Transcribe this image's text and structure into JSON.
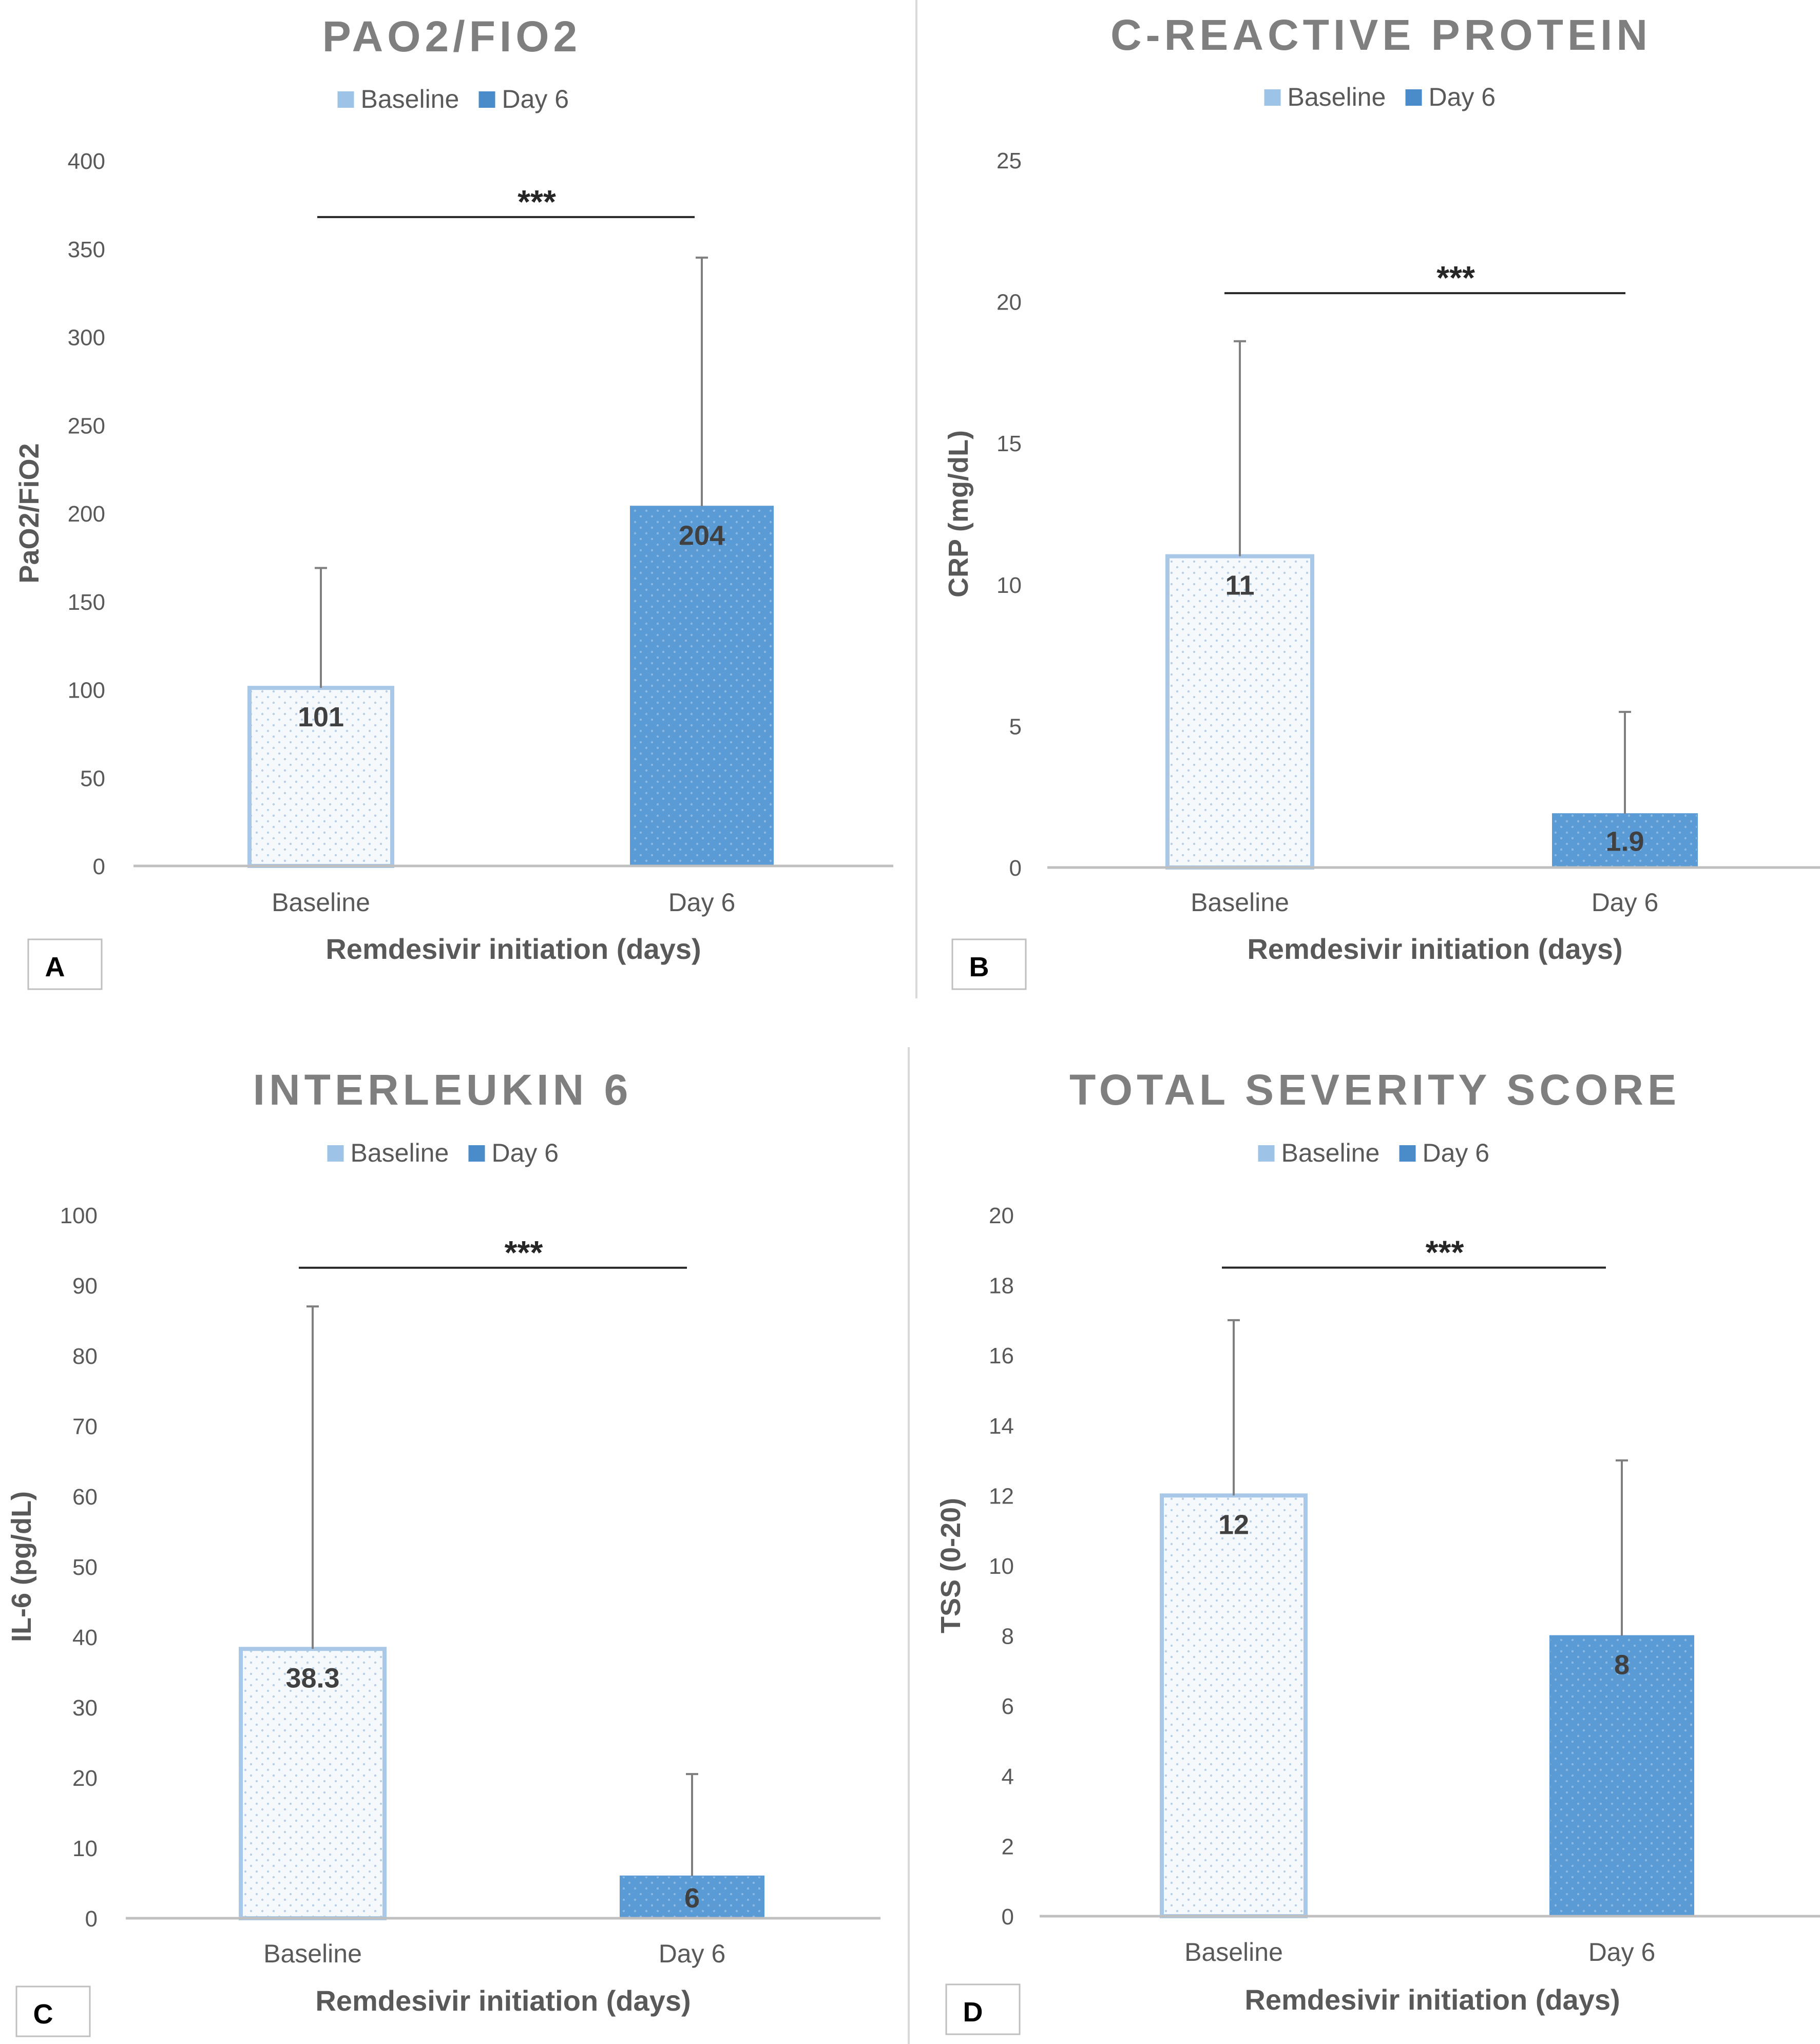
{
  "colors": {
    "baseline_fill": "#f6f9fc",
    "baseline_edge": "#a9c8e8",
    "baseline_legend": "#9dc3e6",
    "day6_fill": "#5b9bd5",
    "day6_legend": "#4a8bc9",
    "axis": "#bfbfbf",
    "divider": "#d9d9d9"
  },
  "chart_data": [
    {
      "panel": "A",
      "type": "bar",
      "title": "PAO2/FIO2",
      "ylabel": "PaO2/FiO2",
      "xlabel": "Remdesivir initiation (days)",
      "categories": [
        "Baseline",
        "Day 6"
      ],
      "legend": [
        "Baseline",
        "Day 6"
      ],
      "values": [
        101,
        204
      ],
      "value_labels": [
        "101",
        "204"
      ],
      "error_upper": [
        169,
        345
      ],
      "ylim": [
        0,
        400
      ],
      "yticks": [
        0,
        50,
        100,
        150,
        200,
        250,
        300,
        350,
        400
      ],
      "significance": "***",
      "significance_at": 368
    },
    {
      "panel": "B",
      "type": "bar",
      "title": "C-REACTIVE PROTEIN",
      "ylabel": "CRP (mg/dL)",
      "xlabel": "Remdesivir initiation (days)",
      "categories": [
        "Baseline",
        "Day 6"
      ],
      "legend": [
        "Baseline",
        "Day 6"
      ],
      "values": [
        11,
        1.9
      ],
      "value_labels": [
        "11",
        "1.9"
      ],
      "error_upper": [
        18.6,
        5.5
      ],
      "ylim": [
        0,
        25
      ],
      "yticks": [
        0,
        5,
        10,
        15,
        20,
        25
      ],
      "significance": "***",
      "significance_at": 20.3
    },
    {
      "panel": "C",
      "type": "bar",
      "title": "INTERLEUKIN 6",
      "ylabel": "IL-6 (pg/dL)",
      "xlabel": "Remdesivir initiation (days)",
      "categories": [
        "Baseline",
        "Day 6"
      ],
      "legend": [
        "Baseline",
        "Day 6"
      ],
      "values": [
        38.3,
        6
      ],
      "value_labels": [
        "38.3",
        "6"
      ],
      "error_upper": [
        87,
        20.5
      ],
      "ylim": [
        0,
        100
      ],
      "yticks": [
        0,
        10,
        20,
        30,
        40,
        50,
        60,
        70,
        80,
        90,
        100
      ],
      "significance": "***",
      "significance_at": 92.5
    },
    {
      "panel": "D",
      "type": "bar",
      "title": "TOTAL SEVERITY SCORE",
      "ylabel": "TSS (0-20)",
      "xlabel": "Remdesivir initiation (days)",
      "categories": [
        "Baseline",
        "Day 6"
      ],
      "legend": [
        "Baseline",
        "Day 6"
      ],
      "values": [
        12,
        8
      ],
      "value_labels": [
        "12",
        "8"
      ],
      "error_upper": [
        17,
        13
      ],
      "ylim": [
        0,
        20
      ],
      "yticks": [
        0,
        2,
        4,
        6,
        8,
        10,
        12,
        14,
        16,
        18,
        20
      ],
      "significance": "***",
      "significance_at": 18.5
    }
  ]
}
